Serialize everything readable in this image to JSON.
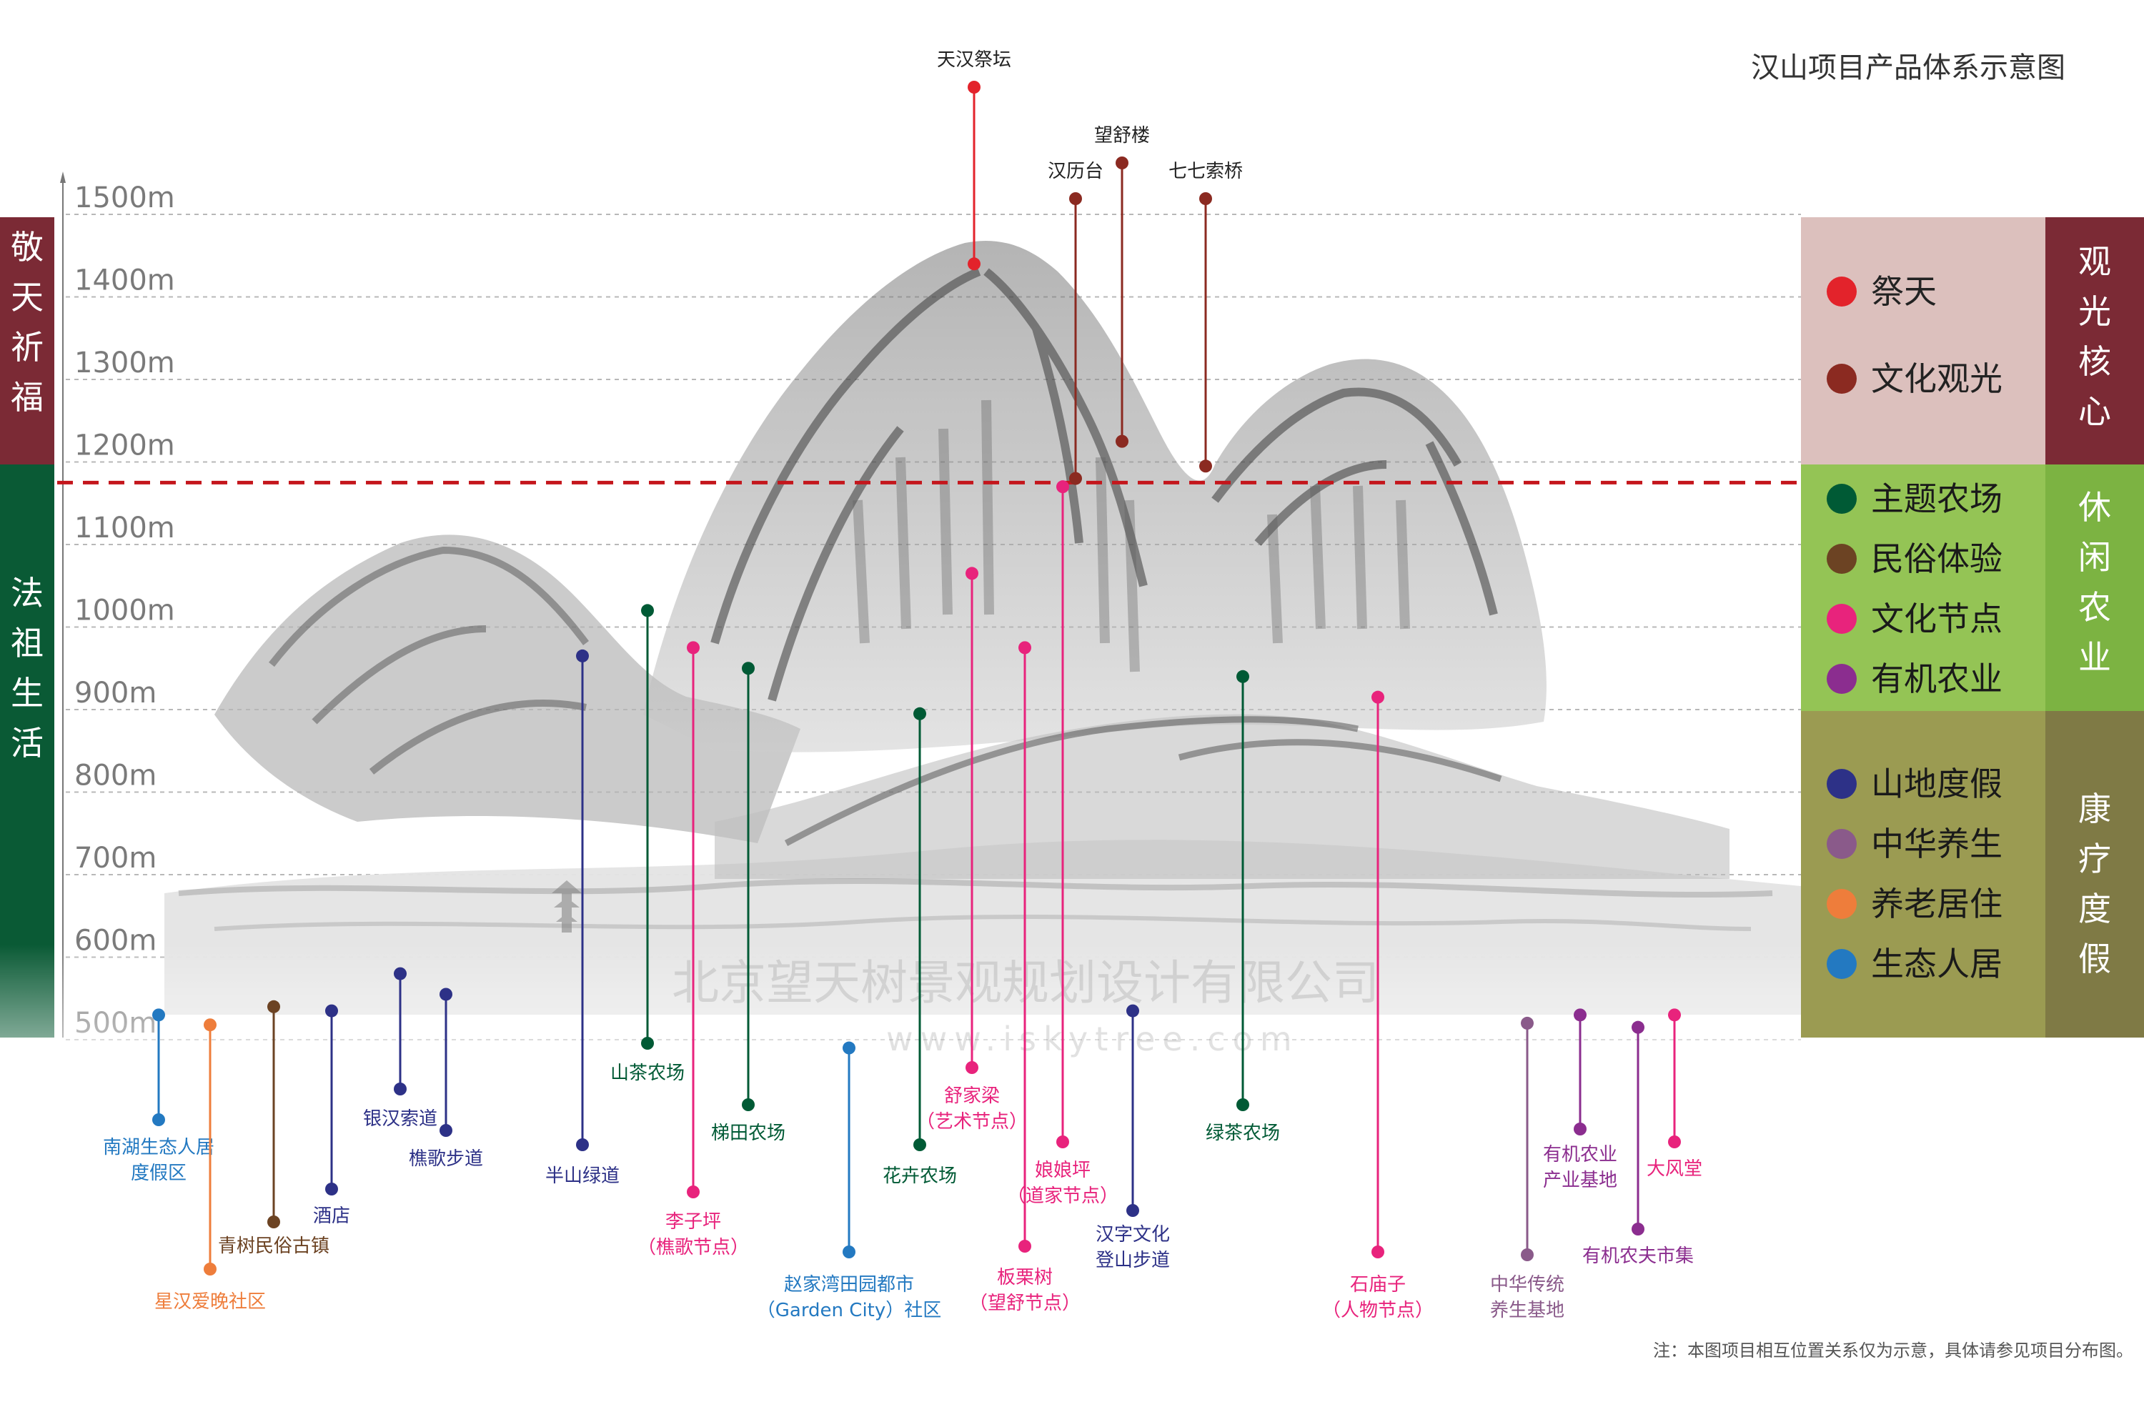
{
  "title": "汉山项目产品体系示意图",
  "note": "注：本图项目相互位置关系仅为示意，具体请参见项目分布图。",
  "watermark": {
    "line1": "北京望天树景观规划设计有限公司",
    "line2": "www.iskytree.com"
  },
  "colors": {
    "jitian": "#e3232b",
    "wenhua_guanguang": "#8b2a21",
    "zhuti_nongchang": "#005a35",
    "minsu_tiyan": "#6c4323",
    "wenhua_jiedian": "#e8237c",
    "youji_nongye": "#8b2d8f",
    "shandi_dujia": "#2d3187",
    "zhonghua_yangsheng": "#8a5a8a",
    "yanglao_juzhu": "#ee7d3b",
    "shengtai_renju": "#2379c1",
    "band_top": "#7b2a35",
    "band_mid": "#0a5a35",
    "panel_top": "#dcc0bd",
    "tab_top": "#7b2a35",
    "panel_mid": "#94c455",
    "tab_mid": "#7cb342",
    "panel_bot": "#9b9b52",
    "tab_bot": "#7f7a45"
  },
  "y_axis": {
    "ticks": [
      "1500m",
      "1400m",
      "1300m",
      "1200m",
      "1100m",
      "1000m",
      "900m",
      "800m",
      "700m",
      "600m",
      "500m"
    ],
    "values": [
      1500,
      1400,
      1300,
      1200,
      1100,
      1000,
      900,
      800,
      700,
      600,
      500
    ]
  },
  "left_bands": [
    {
      "label": "敬天祈福"
    },
    {
      "label": "法祖生活"
    }
  ],
  "right_panels": [
    {
      "tab": "观光核心",
      "items": [
        {
          "label": "祭天",
          "color_key": "jitian"
        },
        {
          "label": "文化观光",
          "color_key": "wenhua_guanguang"
        }
      ]
    },
    {
      "tab": "休闲农业",
      "items": [
        {
          "label": "主题农场",
          "color_key": "zhuti_nongchang"
        },
        {
          "label": "民俗体验",
          "color_key": "minsu_tiyan"
        },
        {
          "label": "文化节点",
          "color_key": "wenhua_jiedian"
        },
        {
          "label": "有机农业",
          "color_key": "youji_nongye"
        }
      ]
    },
    {
      "tab": "康疗度假",
      "items": [
        {
          "label": "山地度假",
          "color_key": "shandi_dujia"
        },
        {
          "label": "中华养生",
          "color_key": "zhonghua_yangsheng"
        },
        {
          "label": "养老居住",
          "color_key": "yanglao_juzhu"
        },
        {
          "label": "生态人居",
          "color_key": "shengtai_renju"
        }
      ]
    }
  ],
  "boundary_elevation_m": 1175,
  "projects": [
    {
      "lines": [
        "天汉祭坛"
      ],
      "category": "jitian",
      "elevation_m": 1440
    },
    {
      "lines": [
        "汉历台"
      ],
      "category": "wenhua_guanguang",
      "elevation_m": 1180
    },
    {
      "lines": [
        "望舒楼"
      ],
      "category": "wenhua_guanguang",
      "elevation_m": 1225
    },
    {
      "lines": [
        "七七索桥"
      ],
      "category": "wenhua_guanguang",
      "elevation_m": 1195
    },
    {
      "lines": [
        "南湖生态人居",
        "度假区"
      ],
      "category": "shengtai_renju",
      "elevation_m": 530
    },
    {
      "lines": [
        "星汉爱晚社区"
      ],
      "category": "yanglao_juzhu",
      "elevation_m": 518
    },
    {
      "lines": [
        "青树民俗古镇"
      ],
      "category": "minsu_tiyan",
      "elevation_m": 540
    },
    {
      "lines": [
        "酒店"
      ],
      "category": "shandi_dujia",
      "elevation_m": 535
    },
    {
      "lines": [
        "银汉索道"
      ],
      "category": "shandi_dujia",
      "elevation_m": 580
    },
    {
      "lines": [
        "樵歌步道"
      ],
      "category": "shandi_dujia",
      "elevation_m": 555
    },
    {
      "lines": [
        "半山绿道"
      ],
      "category": "shandi_dujia",
      "elevation_m": 965
    },
    {
      "lines": [
        "山茶农场"
      ],
      "category": "zhuti_nongchang",
      "elevation_m": 1020
    },
    {
      "lines": [
        "李子坪",
        "（樵歌节点）"
      ],
      "category": "wenhua_jiedian",
      "elevation_m": 975
    },
    {
      "lines": [
        "梯田农场"
      ],
      "category": "zhuti_nongchang",
      "elevation_m": 950
    },
    {
      "lines": [
        "赵家湾田园都市",
        "（Garden City）社区"
      ],
      "category": "shengtai_renju",
      "elevation_m": 490
    },
    {
      "lines": [
        "花卉农场"
      ],
      "category": "zhuti_nongchang",
      "elevation_m": 895
    },
    {
      "lines": [
        "舒家梁",
        "（艺术节点）"
      ],
      "category": "wenhua_jiedian",
      "elevation_m": 1065
    },
    {
      "lines": [
        "板栗树",
        "（望舒节点）"
      ],
      "category": "wenhua_jiedian",
      "elevation_m": 975
    },
    {
      "lines": [
        "娘娘坪",
        "（道家节点）"
      ],
      "category": "wenhua_jiedian",
      "elevation_m": 1170
    },
    {
      "lines": [
        "汉字文化",
        "登山步道"
      ],
      "category": "shandi_dujia",
      "elevation_m": 535
    },
    {
      "lines": [
        "绿茶农场"
      ],
      "category": "zhuti_nongchang",
      "elevation_m": 940
    },
    {
      "lines": [
        "石庙子",
        "（人物节点）"
      ],
      "category": "wenhua_jiedian",
      "elevation_m": 915
    },
    {
      "lines": [
        "中华传统",
        "养生基地"
      ],
      "category": "zhonghua_yangsheng",
      "elevation_m": 520
    },
    {
      "lines": [
        "有机农业",
        "产业基地"
      ],
      "category": "youji_nongye",
      "elevation_m": 530
    },
    {
      "lines": [
        "有机农夫市集"
      ],
      "category": "youji_nongye",
      "elevation_m": 515
    },
    {
      "lines": [
        "大风堂"
      ],
      "category": "wenhua_jiedian",
      "elevation_m": 530
    }
  ]
}
